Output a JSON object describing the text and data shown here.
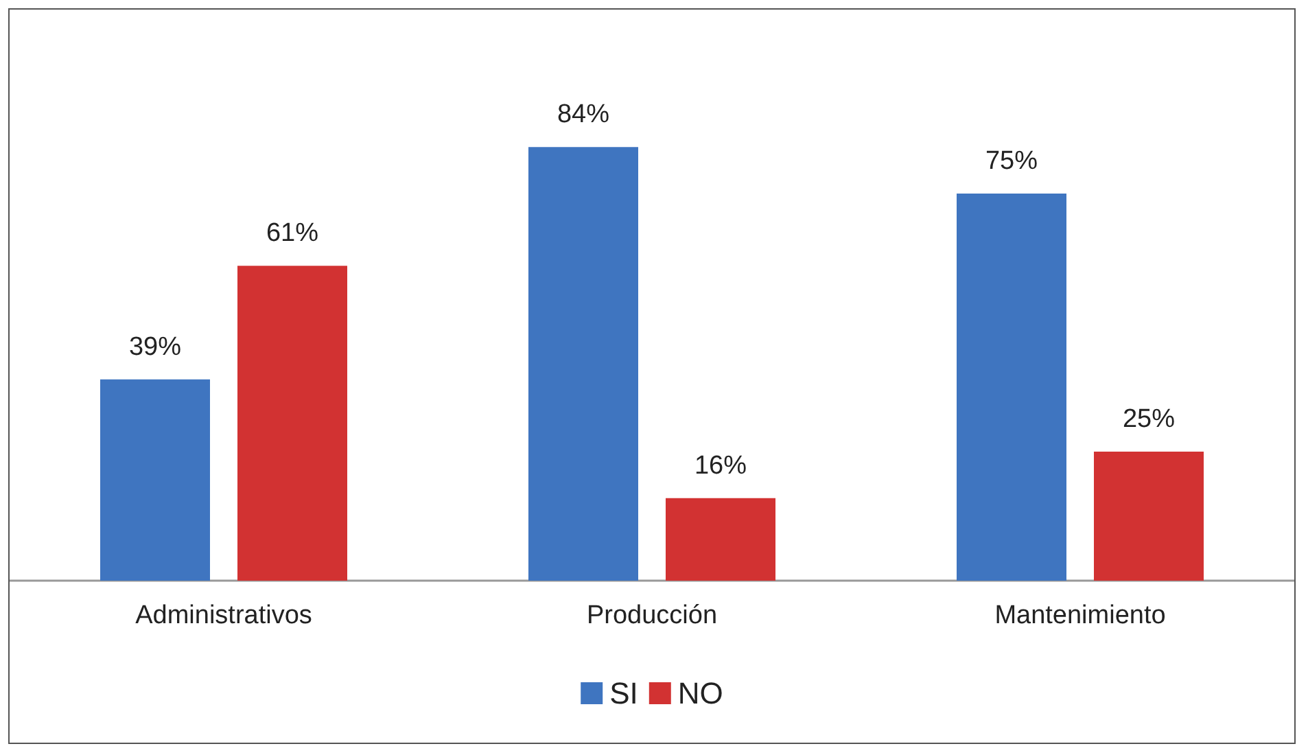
{
  "chart_data": {
    "type": "bar",
    "categories": [
      "Administrativos",
      "Producción",
      "Mantenimiento"
    ],
    "series": [
      {
        "name": "SI",
        "color": "#3f75c0",
        "values": [
          39,
          84,
          75
        ],
        "value_labels": [
          "39%",
          "84%",
          "75%"
        ]
      },
      {
        "name": "NO",
        "color": "#d23232",
        "values": [
          61,
          16,
          25
        ],
        "value_labels": [
          "61%",
          "16%",
          "25%"
        ]
      }
    ],
    "legend": "bottom"
  }
}
